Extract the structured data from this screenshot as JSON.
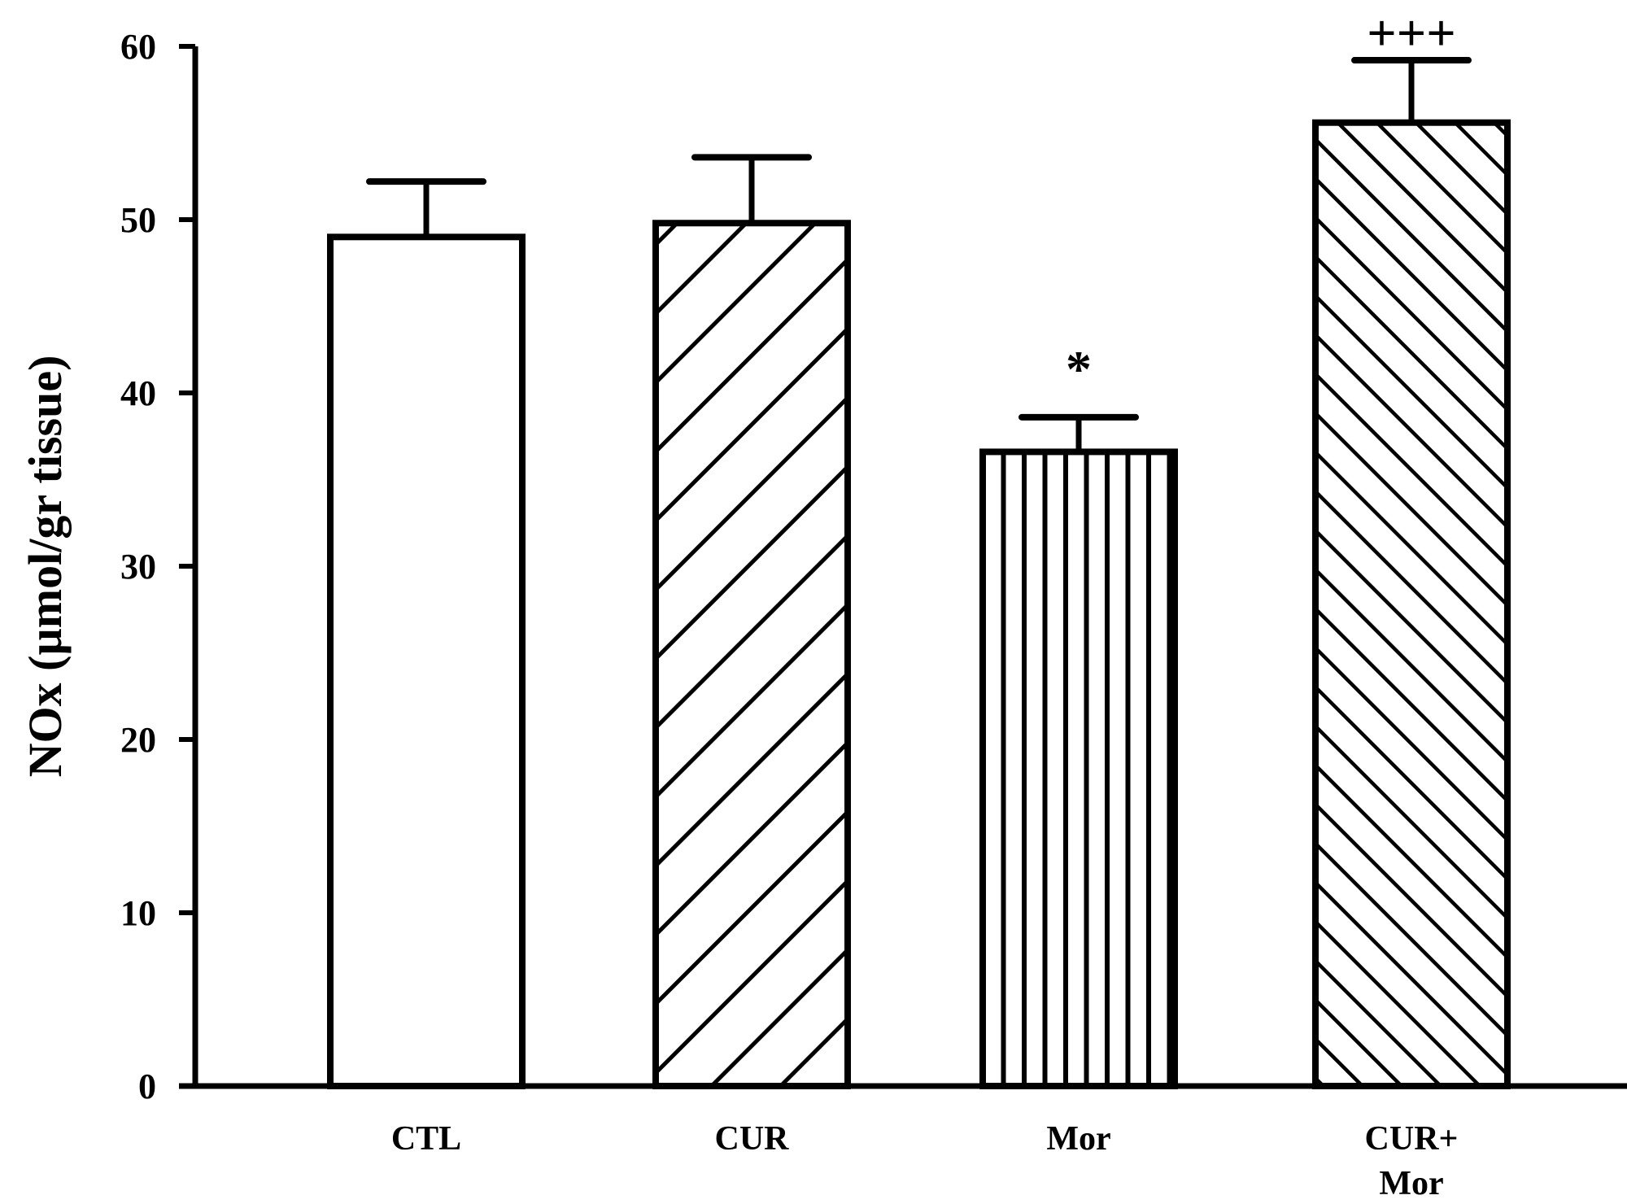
{
  "chart_data": {
    "type": "bar",
    "title": "",
    "xlabel": "",
    "ylabel": "NOx (µmol/gr tissue)",
    "ylim": [
      0,
      60
    ],
    "yticks": [
      0,
      10,
      20,
      30,
      40,
      50,
      60
    ],
    "grid": false,
    "legend": "none",
    "categories": [
      {
        "label_lines": [
          "CTL"
        ],
        "value": 49,
        "error": 3.2,
        "pattern": "none",
        "annotation": ""
      },
      {
        "label_lines": [
          "CUR"
        ],
        "value": 49.8,
        "error": 3.8,
        "pattern": "diagonal-forward",
        "annotation": ""
      },
      {
        "label_lines": [
          "Mor"
        ],
        "value": 36.6,
        "error": 2.0,
        "pattern": "vertical",
        "annotation": "*"
      },
      {
        "label_lines": [
          "CUR+",
          "Mor"
        ],
        "value": 55.6,
        "error": 3.6,
        "pattern": "diagonal-backward",
        "annotation": "+++"
      }
    ],
    "colors": {
      "stroke": "#000000",
      "fill": "#ffffff"
    }
  }
}
